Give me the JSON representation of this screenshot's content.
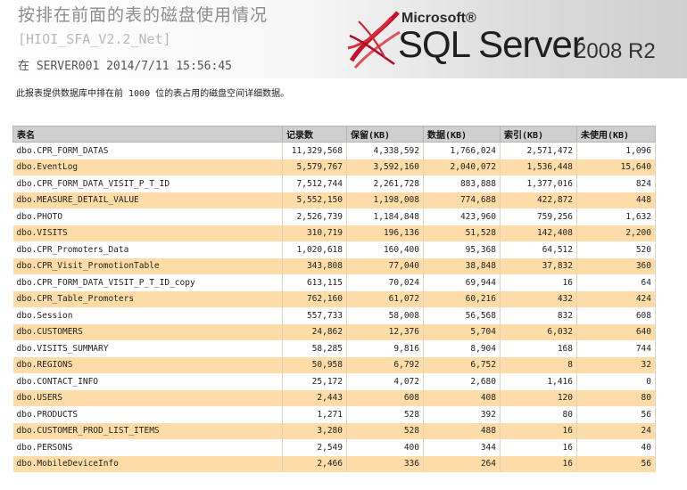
{
  "header": {
    "title": "按排在前面的表的磁盘使用情况",
    "database": "[HIOI_SFA_V2.2_Net]",
    "server_line": "在 SERVER001 2014/7/11 15:56:45",
    "logo": {
      "microsoft": "Microsoft®",
      "product": "SQL Server",
      "version": "2008 R2"
    }
  },
  "description": "此报表提供数据库中排在前 1000 位的表占用的磁盘空间详细数据。",
  "table": {
    "columns": [
      "表名",
      "记录数",
      "保留(KB)",
      "数据(KB)",
      "索引(KB)",
      "未使用(KB)"
    ],
    "rows": [
      [
        "dbo.CPR_FORM_DATAS",
        "11,329,568",
        "4,338,592",
        "1,766,024",
        "2,571,472",
        "1,096"
      ],
      [
        "dbo.EventLog",
        "5,579,767",
        "3,592,160",
        "2,040,072",
        "1,536,448",
        "15,640"
      ],
      [
        "dbo.CPR_FORM_DATA_VISIT_P_T_ID",
        "7,512,744",
        "2,261,728",
        "883,888",
        "1,377,016",
        "824"
      ],
      [
        "dbo.MEASURE_DETAIL_VALUE",
        "5,552,150",
        "1,198,008",
        "774,688",
        "422,872",
        "448"
      ],
      [
        "dbo.PHOTO",
        "2,526,739",
        "1,184,848",
        "423,960",
        "759,256",
        "1,632"
      ],
      [
        "dbo.VISITS",
        "310,719",
        "196,136",
        "51,528",
        "142,408",
        "2,200"
      ],
      [
        "dbo.CPR_Promoters_Data",
        "1,020,618",
        "160,400",
        "95,368",
        "64,512",
        "520"
      ],
      [
        "dbo.CPR_Visit_PromotionTable",
        "343,808",
        "77,040",
        "38,848",
        "37,832",
        "360"
      ],
      [
        "dbo.CPR_FORM_DATA_VISIT_P_T_ID_copy",
        "613,115",
        "70,024",
        "69,944",
        "16",
        "64"
      ],
      [
        "dbo.CPR_Table_Promoters",
        "762,160",
        "61,072",
        "60,216",
        "432",
        "424"
      ],
      [
        "dbo.Session",
        "557,733",
        "58,008",
        "56,568",
        "832",
        "608"
      ],
      [
        "dbo.CUSTOMERS",
        "24,862",
        "12,376",
        "5,704",
        "6,032",
        "640"
      ],
      [
        "dbo.VISITS_SUMMARY",
        "58,285",
        "9,816",
        "8,904",
        "168",
        "744"
      ],
      [
        "dbo.REGIONS",
        "50,958",
        "6,792",
        "6,752",
        "8",
        "32"
      ],
      [
        "dbo.CONTACT_INFO",
        "25,172",
        "4,072",
        "2,680",
        "1,416",
        "0"
      ],
      [
        "dbo.USERS",
        "2,443",
        "608",
        "408",
        "120",
        "80"
      ],
      [
        "dbo.PRODUCTS",
        "1,271",
        "528",
        "392",
        "80",
        "56"
      ],
      [
        "dbo.CUSTOMER_PROD_LIST_ITEMS",
        "3,280",
        "528",
        "488",
        "16",
        "24"
      ],
      [
        "dbo.PERSONS",
        "2,549",
        "400",
        "344",
        "16",
        "40"
      ],
      [
        "dbo.MobileDeviceInfo",
        "2,466",
        "336",
        "264",
        "16",
        "56"
      ]
    ]
  },
  "colors": {
    "row_alt": "#fddca8",
    "header_bg": "#cfcfcf",
    "logo_red": "#c8102e"
  }
}
